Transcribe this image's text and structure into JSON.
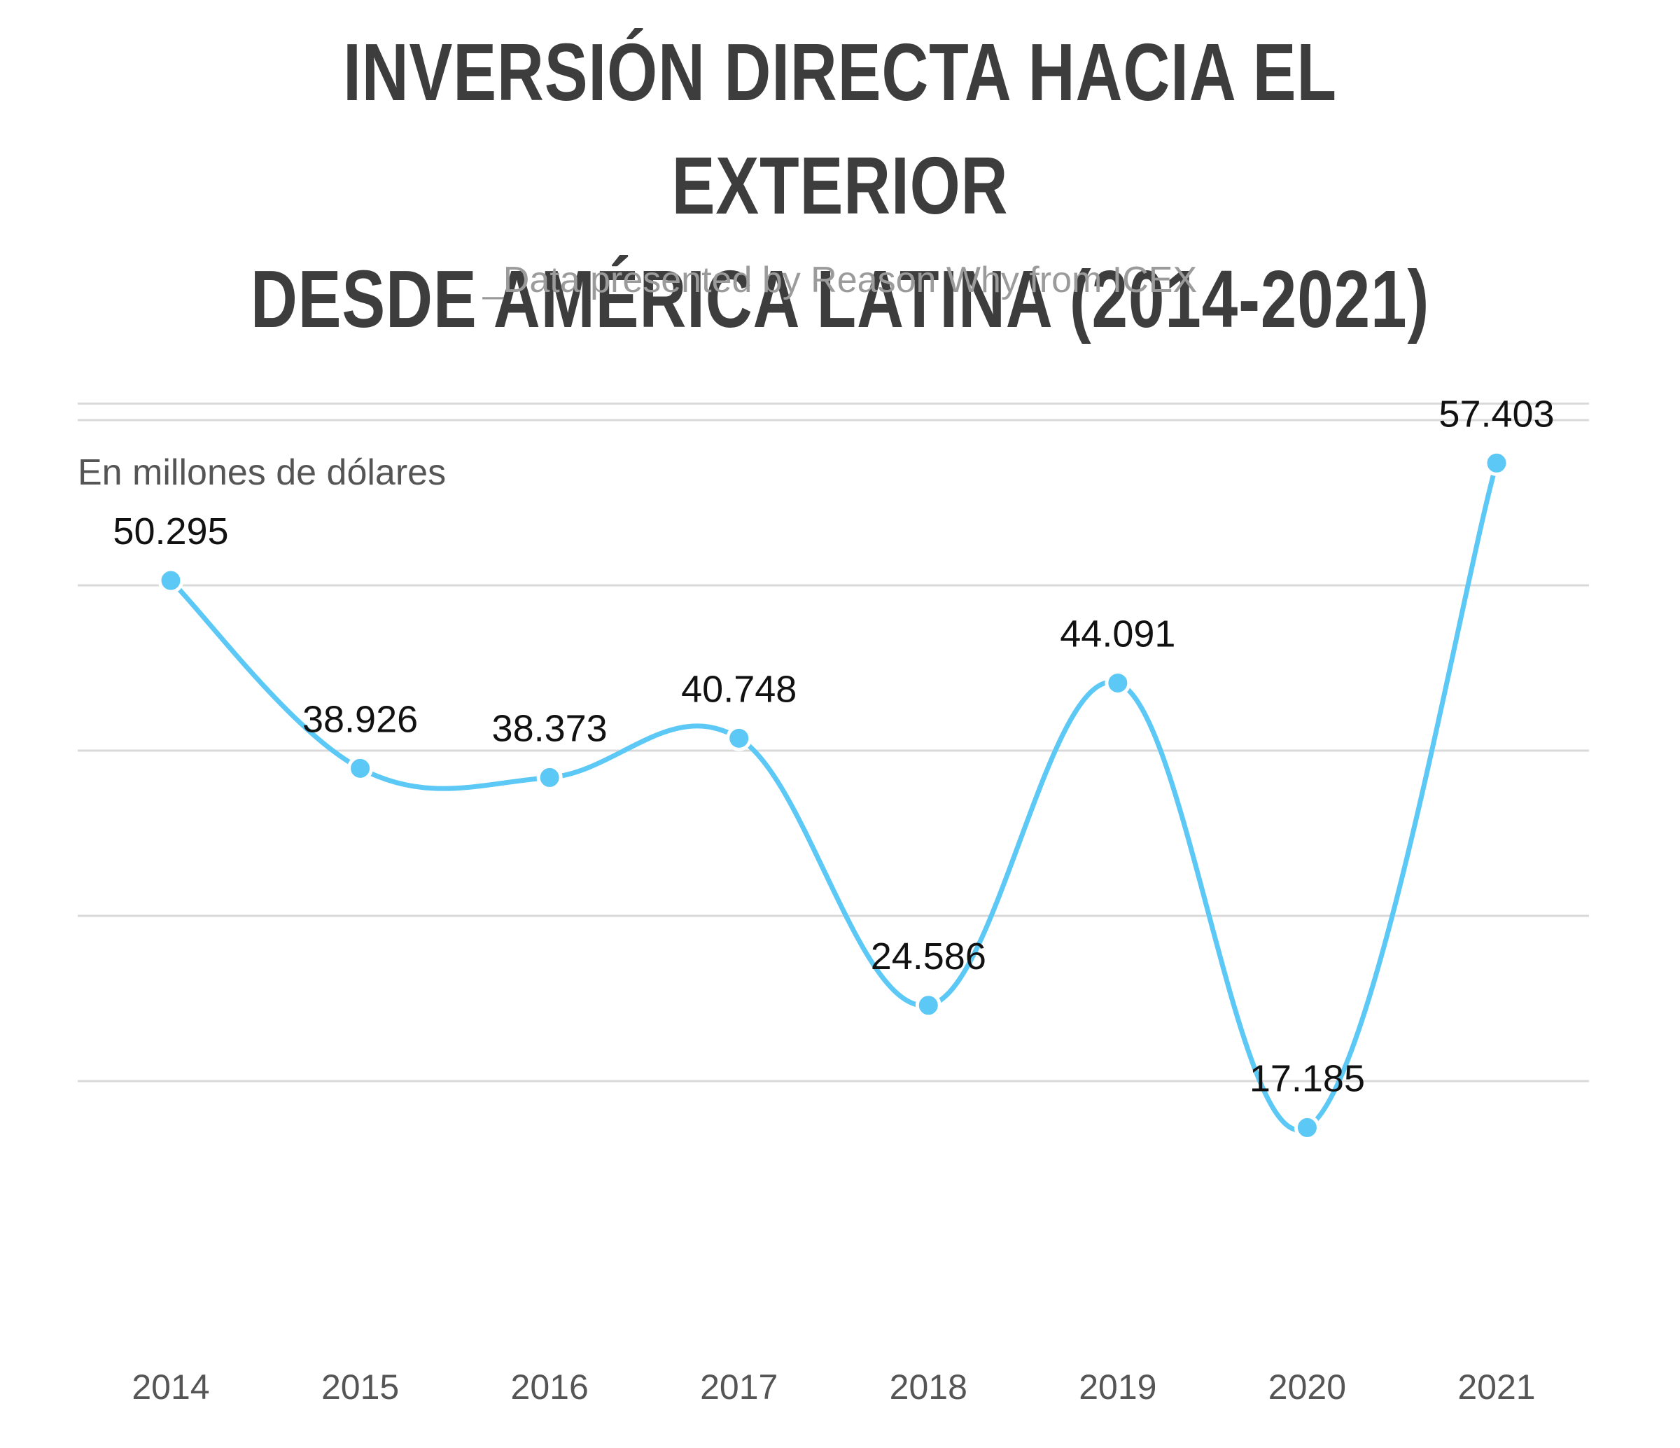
{
  "title_line1": "INVERSIÓN DIRECTA HACIA EL EXTERIOR",
  "title_line2": "DESDE AMÉRICA LATINA (2014-2021)",
  "subtitle": "_Data presented by Reason Why from ICEX",
  "colors": {
    "line": "#5bc8f5",
    "grid": "#d9d9d9",
    "title": "#3d3d3d",
    "subtitle": "#9b9b9b"
  },
  "chart_data": {
    "type": "line",
    "title": "INVERSIÓN DIRECTA HACIA EL EXTERIOR DESDE AMÉRICA LATINA (2014-2021)",
    "subtitle": "_Data presented by Reason Why from ICEX",
    "ylabel": "En millones de dólares",
    "xlabel": "",
    "categories": [
      "2014",
      "2015",
      "2016",
      "2017",
      "2018",
      "2019",
      "2020",
      "2021"
    ],
    "values": [
      50295,
      38926,
      38373,
      40748,
      24586,
      44091,
      17185,
      57403
    ],
    "value_labels": [
      "50.295",
      "38.926",
      "38.373",
      "40.748",
      "24.586",
      "44.091",
      "17.185",
      "57.403"
    ],
    "ylim": [
      10000,
      60000
    ],
    "grid": true,
    "y_tick_labels_shown": false,
    "legend": "none",
    "smooth": true
  }
}
